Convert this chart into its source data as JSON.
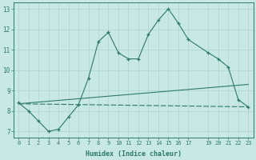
{
  "line1_x": [
    0,
    1,
    2,
    3,
    4,
    5,
    6,
    7,
    8,
    9,
    10,
    11,
    12,
    13,
    14,
    15,
    16,
    17,
    19,
    20,
    21,
    22,
    23
  ],
  "line1_y": [
    8.4,
    8.0,
    7.5,
    7.0,
    7.1,
    7.7,
    8.3,
    9.6,
    11.4,
    11.85,
    10.85,
    10.55,
    10.55,
    11.75,
    12.45,
    13.0,
    12.3,
    11.5,
    10.85,
    10.55,
    10.15,
    8.55,
    8.2
  ],
  "line2_x": [
    0,
    23
  ],
  "line2_y": [
    8.35,
    9.3
  ],
  "line3_x": [
    0,
    23
  ],
  "line3_y": [
    8.35,
    8.2
  ],
  "color": "#2d7a6b",
  "bg_color": "#c8e8e4",
  "grid_color": "#aed4d0",
  "xlim": [
    -0.5,
    23.5
  ],
  "ylim": [
    6.7,
    13.3
  ],
  "xlabel": "Humidex (Indice chaleur)",
  "xticks": [
    0,
    1,
    2,
    3,
    4,
    5,
    6,
    7,
    8,
    9,
    10,
    11,
    12,
    13,
    14,
    15,
    16,
    17,
    19,
    20,
    21,
    22,
    23
  ],
  "yticks": [
    7,
    8,
    9,
    10,
    11,
    12,
    13
  ]
}
